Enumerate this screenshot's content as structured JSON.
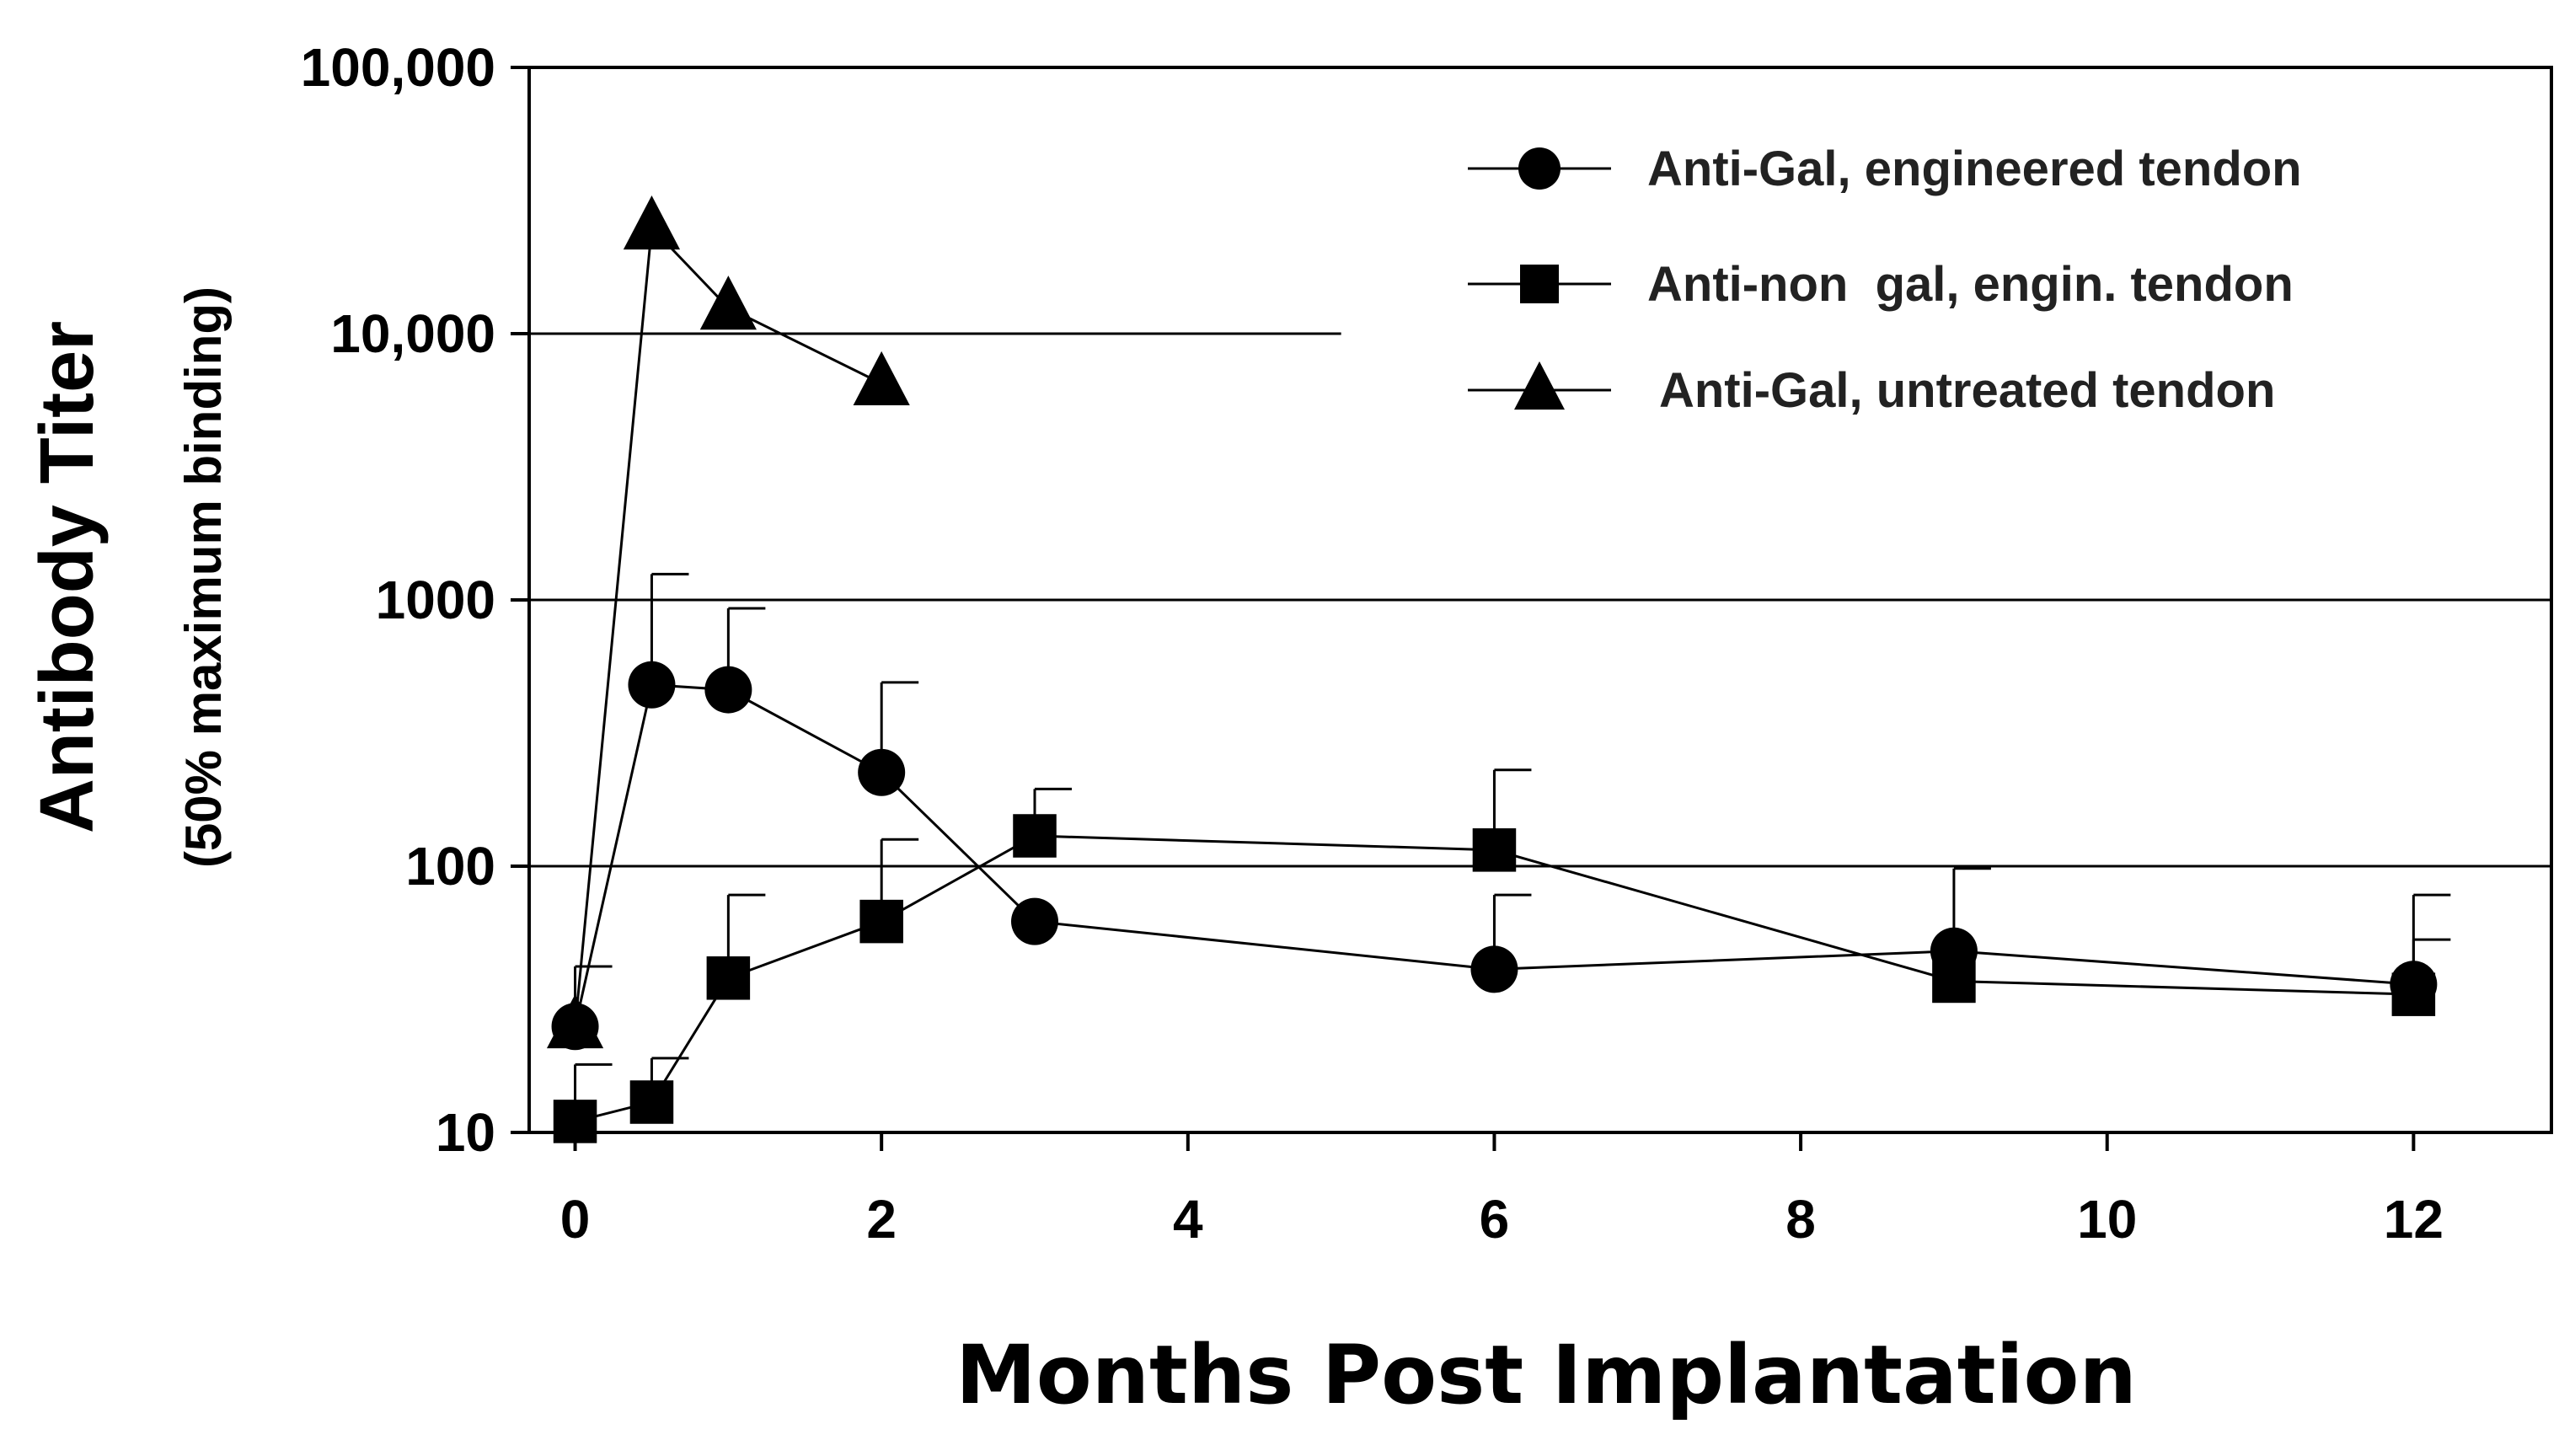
{
  "chart_data": {
    "type": "line",
    "y_scale": "log",
    "xlabel": "Months Post Implantation",
    "ylabel": "Antibody Titer",
    "ylabel_sub": "(50% maximum binding)",
    "xlim": [
      -0.3,
      12.9
    ],
    "ylim": [
      10,
      100000
    ],
    "x_ticks": [
      0,
      2,
      4,
      6,
      8,
      10,
      12
    ],
    "y_ticks": [
      {
        "value": 10,
        "label": "10"
      },
      {
        "value": 100,
        "label": "100"
      },
      {
        "value": 1000,
        "label": "1000"
      },
      {
        "value": 10000,
        "label": "10,000"
      },
      {
        "value": 100000,
        "label": "100,000"
      }
    ],
    "gridlines": [
      {
        "y": 100,
        "x_from": -0.3,
        "x_to": 12.9
      },
      {
        "y": 1000,
        "x_from": -0.3,
        "x_to": 12.9
      },
      {
        "y": 10000,
        "x_from": -0.3,
        "x_to": 5
      }
    ],
    "legend_position": "top-right",
    "series": [
      {
        "name": "Anti-Gal, engineered tendon",
        "marker": "circle",
        "x": [
          0,
          0.5,
          1,
          2,
          3,
          6,
          9,
          12
        ],
        "y": [
          25,
          480,
          460,
          225,
          62,
          41,
          48,
          36
        ],
        "error_upper": [
          42,
          1250,
          930,
          490,
          null,
          78,
          98,
          78
        ]
      },
      {
        "name": "Anti-non  gal, engin. tendon",
        "marker": "square",
        "x": [
          0,
          0.5,
          1,
          2,
          3,
          6,
          9,
          12
        ],
        "y": [
          11,
          13,
          38,
          62,
          130,
          115,
          37,
          33
        ],
        "error_upper": [
          18,
          19,
          78,
          126,
          195,
          230,
          null,
          53
        ]
      },
      {
        "name": " Anti-Gal, untreated tendon",
        "marker": "triangle",
        "x": [
          0,
          0.5,
          1,
          2
        ],
        "y": [
          25,
          25000,
          12500,
          6500
        ],
        "error_upper": [
          null,
          null,
          null,
          null
        ]
      }
    ]
  }
}
